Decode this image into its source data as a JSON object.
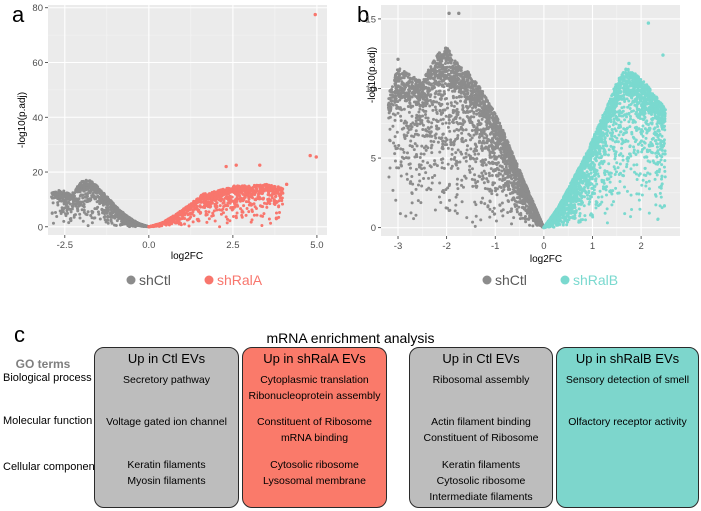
{
  "panels": {
    "a": "a",
    "b": "b",
    "c": "c"
  },
  "colors": {
    "grey": "#8c8c8c",
    "salmon": "#f8766d",
    "teal": "#7ad9cf",
    "panel_bg": "#ebebeb",
    "box_grey": "#bdbdbd",
    "box_salmon": "#fa7a6a",
    "box_teal": "#7dd6cc"
  },
  "chart_data": [
    {
      "type": "scatter",
      "panel": "a",
      "xlabel": "log2FC",
      "ylabel": "-log10(p.adj)",
      "xlim": [
        -3.0,
        5.3
      ],
      "ylim": [
        -3,
        81
      ],
      "xticks": [
        "-2.5",
        "0.0",
        "2.5",
        "5.0"
      ],
      "xtick_values": [
        -2.5,
        0.0,
        2.5,
        5.0
      ],
      "yticks": [
        "0",
        "20",
        "40",
        "60",
        "80"
      ],
      "ytick_values": [
        0,
        20,
        40,
        60,
        80
      ],
      "grid": true,
      "legend_position": "bottom",
      "series": [
        {
          "name": "shCtl",
          "color": "#8c8c8c",
          "shape": "v-shaped cloud of points for log2FC < 0",
          "envelope": [
            [
              -2.9,
              12.5
            ],
            [
              -2.6,
              13.5
            ],
            [
              -2.3,
              12.0
            ],
            [
              -2.0,
              16.5
            ],
            [
              -1.8,
              17.5
            ],
            [
              -1.5,
              14.5
            ],
            [
              -1.2,
              10.5
            ],
            [
              -0.9,
              6.5
            ],
            [
              -0.6,
              3.5
            ],
            [
              -0.3,
              1.2
            ],
            [
              0,
              0
            ]
          ]
        },
        {
          "name": "shRalA",
          "color": "#f8766d",
          "shape": "v-shaped cloud of points for log2FC > 0",
          "envelope": [
            [
              0,
              0
            ],
            [
              0.4,
              1.5
            ],
            [
              0.8,
              4.5
            ],
            [
              1.2,
              8.0
            ],
            [
              1.6,
              12.0
            ],
            [
              2.0,
              13.0
            ],
            [
              2.5,
              15.0
            ],
            [
              3.0,
              15.0
            ],
            [
              3.5,
              15.5
            ],
            [
              4.0,
              14.5
            ]
          ],
          "outliers": [
            [
              4.95,
              77.5
            ],
            [
              4.8,
              26.0
            ],
            [
              4.98,
              25.5
            ],
            [
              2.6,
              22.5
            ],
            [
              2.3,
              22.0
            ],
            [
              3.3,
              22.5
            ],
            [
              4.1,
              15.5
            ]
          ]
        }
      ]
    },
    {
      "type": "scatter",
      "panel": "b",
      "xlabel": "log2FC",
      "ylabel": "-log10(p.adj)",
      "xlim": [
        -3.35,
        2.8
      ],
      "ylim": [
        -0.6,
        16.0
      ],
      "xticks": [
        "-3",
        "-2",
        "-1",
        "0",
        "1",
        "2"
      ],
      "xtick_values": [
        -3,
        -2,
        -1,
        0,
        1,
        2
      ],
      "yticks": [
        "0",
        "5",
        "10",
        "15"
      ],
      "ytick_values": [
        0,
        5,
        10,
        15
      ],
      "grid": true,
      "legend_position": "bottom",
      "series": [
        {
          "name": "shCtl",
          "color": "#8c8c8c",
          "shape": "v-shaped cloud of points for log2FC < 0",
          "envelope": [
            [
              -3.2,
              9.5
            ],
            [
              -3.0,
              11.5
            ],
            [
              -2.5,
              10.5
            ],
            [
              -2.2,
              12.5
            ],
            [
              -2.0,
              13.0
            ],
            [
              -1.8,
              12.0
            ],
            [
              -1.5,
              11.0
            ],
            [
              -1.2,
              9.5
            ],
            [
              -0.9,
              7.5
            ],
            [
              -0.6,
              5.0
            ],
            [
              -0.3,
              2.5
            ],
            [
              0,
              0
            ]
          ],
          "outliers": [
            [
              -1.95,
              15.4
            ],
            [
              -1.75,
              15.4
            ],
            [
              -3.0,
              12.1
            ]
          ]
        },
        {
          "name": "shRalB",
          "color": "#7ad9cf",
          "shape": "v-shaped cloud of points for log2FC > 0",
          "envelope": [
            [
              0,
              0
            ],
            [
              0.3,
              1.5
            ],
            [
              0.6,
              3.5
            ],
            [
              0.9,
              5.5
            ],
            [
              1.2,
              8.0
            ],
            [
              1.5,
              10.5
            ],
            [
              1.7,
              11.5
            ],
            [
              1.9,
              11.0
            ],
            [
              2.2,
              10.0
            ],
            [
              2.5,
              8.5
            ]
          ],
          "outliers": [
            [
              2.15,
              14.7
            ],
            [
              2.45,
              12.4
            ],
            [
              1.75,
              11.8
            ]
          ]
        }
      ]
    }
  ],
  "enrichment": {
    "title": "mRNA enrichment analysis",
    "go_terms_header": "GO terms",
    "row_labels": [
      "Biological process",
      "Molecular function",
      "Cellular component"
    ],
    "groups": [
      {
        "header": "Up in Ctl EVs",
        "bp": [
          "Secretory pathway"
        ],
        "mf": [
          "Voltage gated ion channel"
        ],
        "cc": [
          "Keratin filaments",
          "Myosin filaments"
        ]
      },
      {
        "header": "Up in shRalA EVs",
        "bp": [
          "Cytoplasmic translation",
          "Ribonucleoprotein assembly"
        ],
        "mf": [
          "Constituent of Ribosome",
          "mRNA binding"
        ],
        "cc": [
          "Cytosolic ribosome",
          "Lysosomal membrane"
        ]
      },
      {
        "header": "Up in Ctl EVs",
        "bp": [
          "Ribosomal assembly"
        ],
        "mf": [
          "Actin filament binding",
          "Constituent of Ribosome"
        ],
        "cc": [
          "Keratin filaments",
          "Cytosolic ribosome",
          "Intermediate filaments"
        ]
      },
      {
        "header": "Up in shRalB EVs",
        "bp": [
          "Sensory detection of smell"
        ],
        "mf": [
          "Olfactory receptor activity"
        ],
        "cc": []
      }
    ]
  }
}
